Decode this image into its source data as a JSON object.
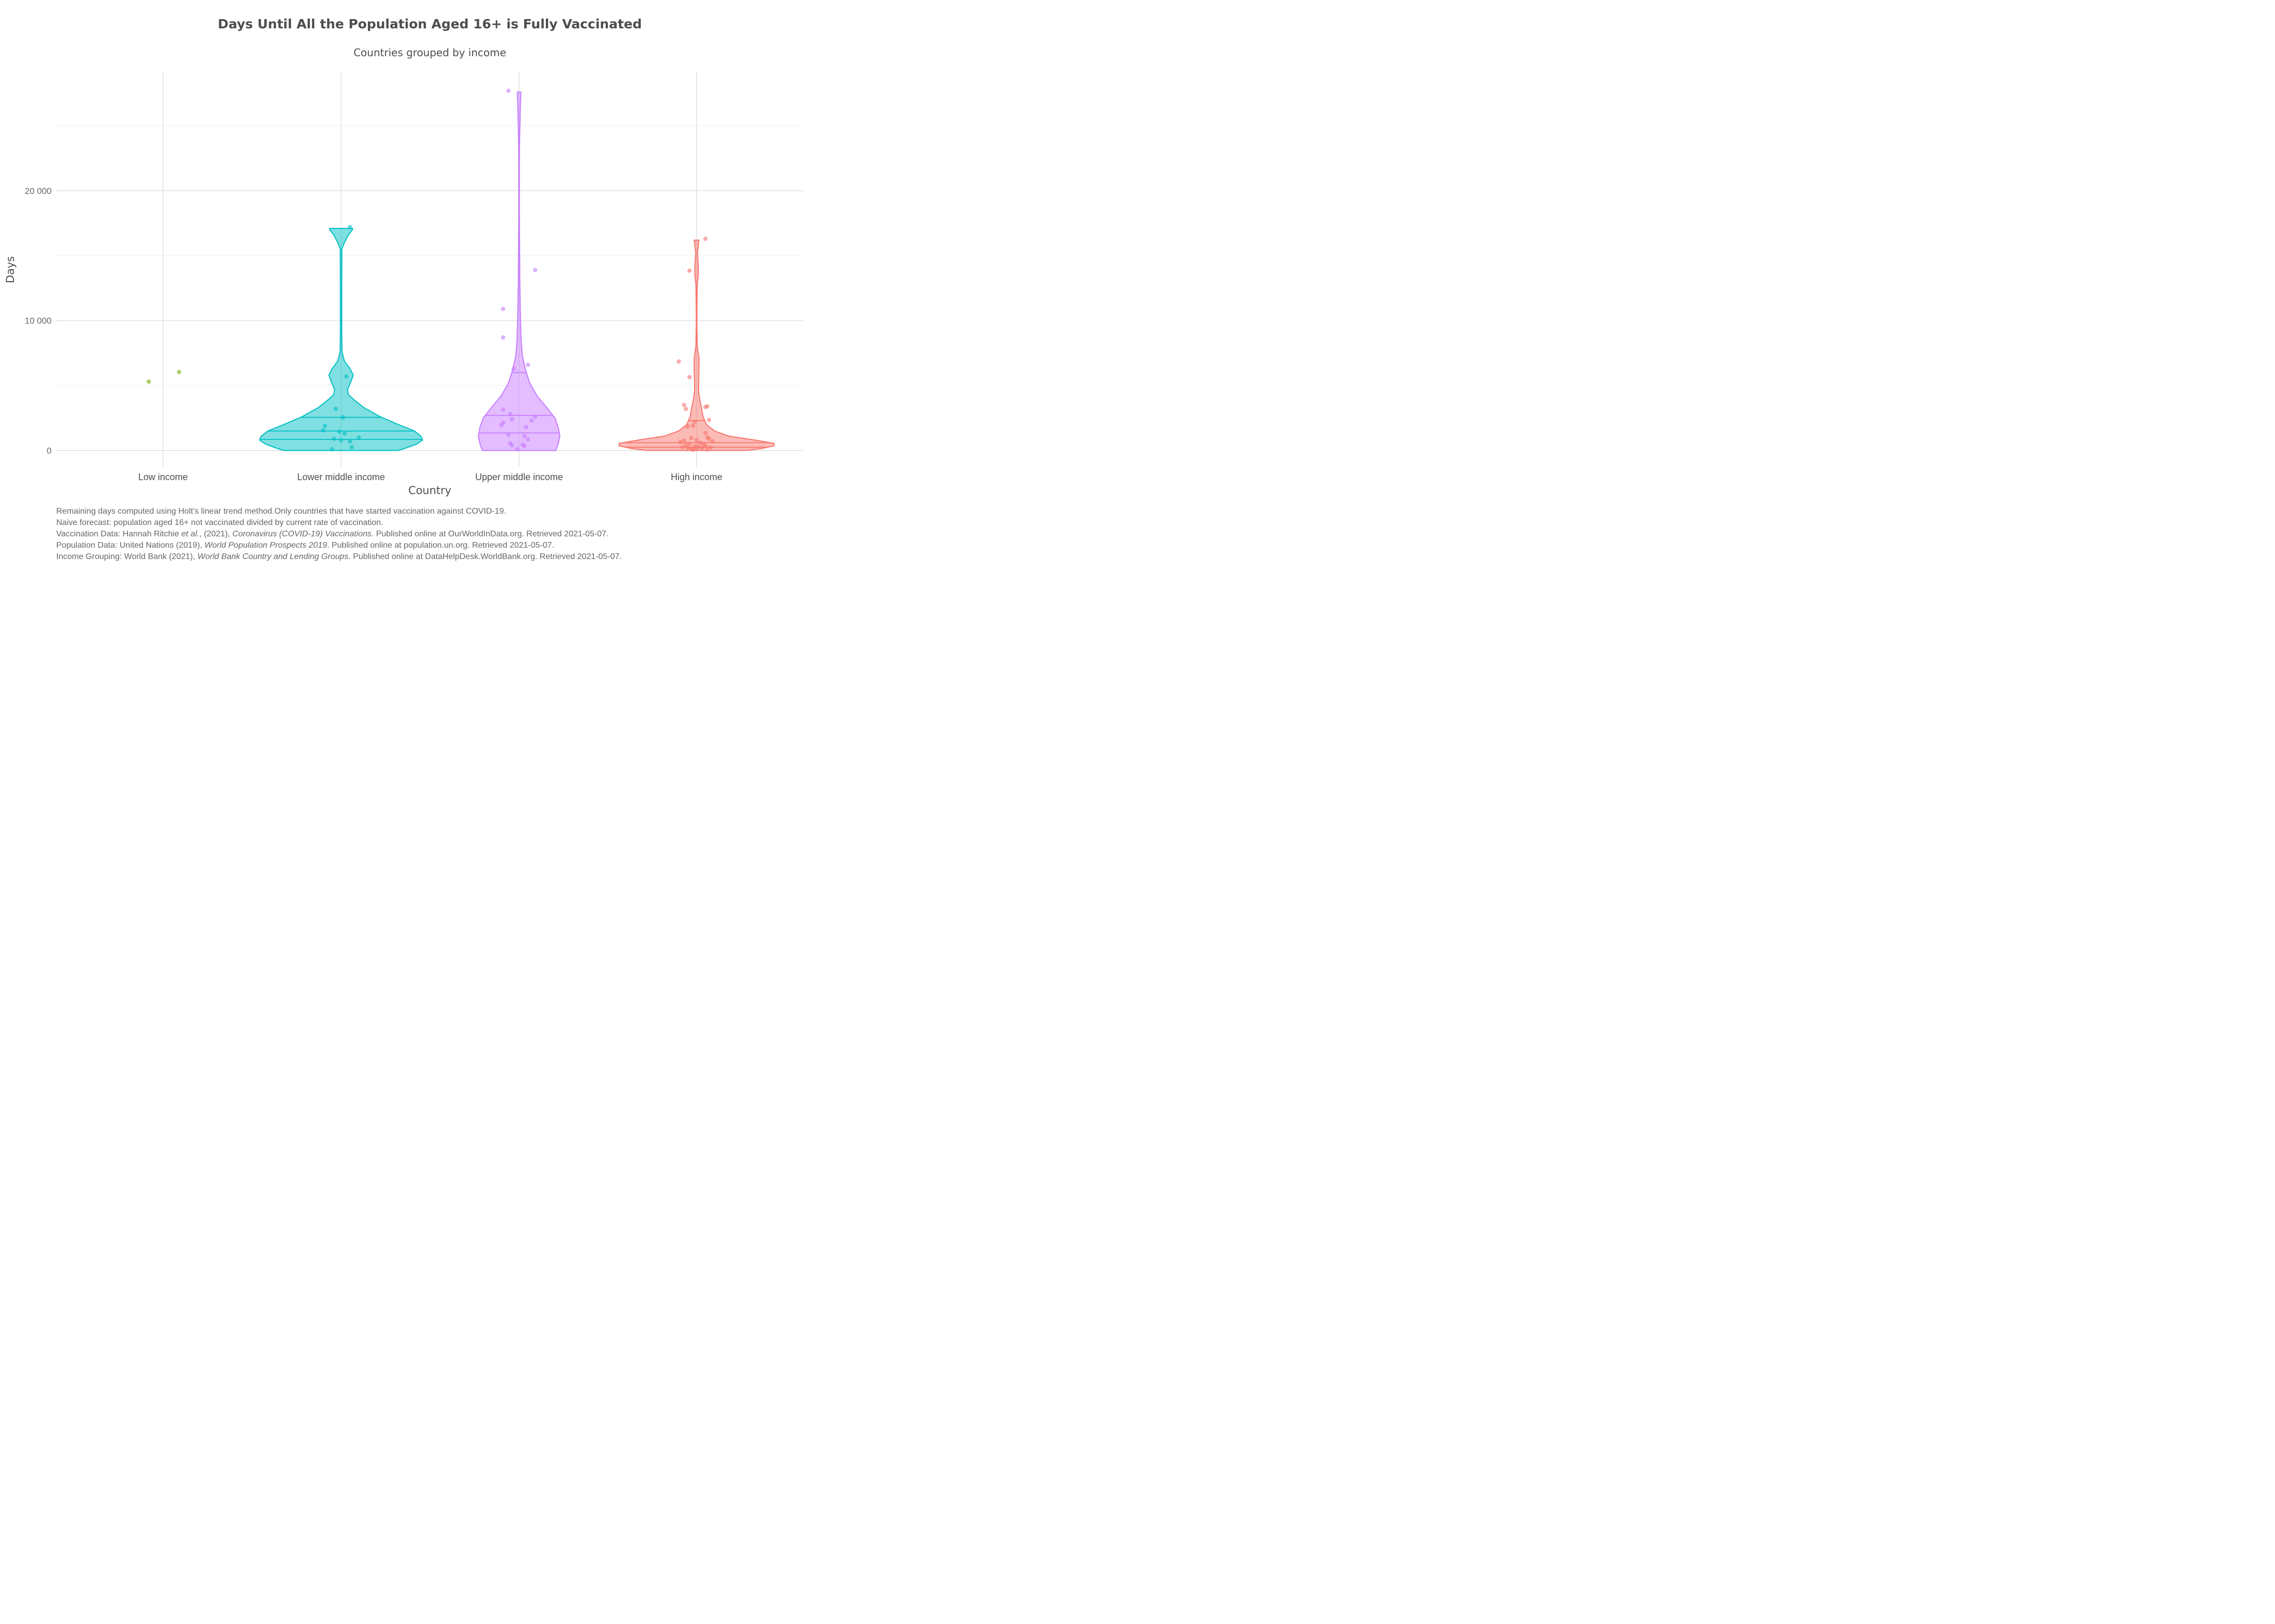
{
  "chart_data": {
    "type": "violin",
    "title": "Days Until All the Population Aged 16+ is Fully Vaccinated",
    "subtitle": "Countries grouped by income",
    "xlabel": "Country",
    "ylabel": "Days",
    "ylim": [
      -1100,
      29000
    ],
    "yticks": [
      {
        "value": 0,
        "label": "0"
      },
      {
        "value": 10000,
        "label": "10 000"
      },
      {
        "value": 20000,
        "label": "20 000"
      }
    ],
    "grid": true,
    "legend": "none",
    "categories": [
      "Low income",
      "Lower middle income",
      "Upper middle income",
      "High income"
    ],
    "series": [
      {
        "category": "Low income",
        "color": "#7CAE00",
        "min": null,
        "max": null,
        "quartiles": [],
        "density": [],
        "points": [
          {
            "x_jitter": -0.08,
            "y": 5300
          },
          {
            "x_jitter": 0.09,
            "y": 6050
          }
        ]
      },
      {
        "category": "Lower middle income",
        "color": "#00BFC4",
        "min": 0,
        "max": 17100,
        "quartiles": [
          850,
          1500,
          2550
        ],
        "density": [
          [
            0,
            0.7
          ],
          [
            200,
            0.8
          ],
          [
            500,
            0.93
          ],
          [
            800,
            1.0
          ],
          [
            1100,
            0.98
          ],
          [
            1500,
            0.9
          ],
          [
            2000,
            0.7
          ],
          [
            2600,
            0.48
          ],
          [
            3300,
            0.28
          ],
          [
            3900,
            0.16
          ],
          [
            4300,
            0.09
          ],
          [
            4700,
            0.08
          ],
          [
            5300,
            0.12
          ],
          [
            5800,
            0.15
          ],
          [
            6300,
            0.11
          ],
          [
            6900,
            0.04
          ],
          [
            7600,
            0.012
          ],
          [
            9000,
            0.008
          ],
          [
            12000,
            0.008
          ],
          [
            15500,
            0.01
          ],
          [
            16000,
            0.04
          ],
          [
            16600,
            0.09
          ],
          [
            17000,
            0.14
          ],
          [
            17100,
            0.14
          ]
        ],
        "points": [
          {
            "x_jitter": -0.05,
            "y": 100
          },
          {
            "x_jitter": 0.06,
            "y": 250
          },
          {
            "x_jitter": 0.05,
            "y": 700
          },
          {
            "x_jitter": 0.0,
            "y": 800
          },
          {
            "x_jitter": -0.04,
            "y": 900
          },
          {
            "x_jitter": 0.1,
            "y": 1000
          },
          {
            "x_jitter": 0.02,
            "y": 1300
          },
          {
            "x_jitter": -0.01,
            "y": 1450
          },
          {
            "x_jitter": -0.1,
            "y": 1550
          },
          {
            "x_jitter": -0.09,
            "y": 1900
          },
          {
            "x_jitter": 0.01,
            "y": 2550
          },
          {
            "x_jitter": -0.03,
            "y": 3200
          },
          {
            "x_jitter": 0.03,
            "y": 5700
          },
          {
            "x_jitter": 0.05,
            "y": 17200
          }
        ]
      },
      {
        "category": "Upper middle income",
        "color": "#C77CFF",
        "min": 0,
        "max": 27600,
        "quartiles": [
          1350,
          2700,
          6000
        ],
        "density": [
          [
            0,
            0.45
          ],
          [
            500,
            0.48
          ],
          [
            1100,
            0.5
          ],
          [
            1800,
            0.48
          ],
          [
            2500,
            0.44
          ],
          [
            3300,
            0.34
          ],
          [
            4200,
            0.22
          ],
          [
            5200,
            0.13
          ],
          [
            6200,
            0.08
          ],
          [
            7300,
            0.04
          ],
          [
            8500,
            0.025
          ],
          [
            10000,
            0.018
          ],
          [
            11500,
            0.013
          ],
          [
            13000,
            0.009
          ],
          [
            14500,
            0.008
          ],
          [
            16000,
            0.006
          ],
          [
            18000,
            0.004
          ],
          [
            20000,
            0.004
          ],
          [
            22000,
            0.004
          ],
          [
            23500,
            0.005
          ],
          [
            24500,
            0.008
          ],
          [
            25500,
            0.012
          ],
          [
            26500,
            0.016
          ],
          [
            27600,
            0.022
          ]
        ],
        "points": [
          {
            "x_jitter": -0.01,
            "y": 100
          },
          {
            "x_jitter": 0.03,
            "y": 350
          },
          {
            "x_jitter": -0.04,
            "y": 400
          },
          {
            "x_jitter": 0.02,
            "y": 450
          },
          {
            "x_jitter": -0.05,
            "y": 550
          },
          {
            "x_jitter": 0.05,
            "y": 850
          },
          {
            "x_jitter": 0.03,
            "y": 1100
          },
          {
            "x_jitter": -0.06,
            "y": 1200
          },
          {
            "x_jitter": 0.04,
            "y": 1800
          },
          {
            "x_jitter": -0.1,
            "y": 1950
          },
          {
            "x_jitter": -0.09,
            "y": 2150
          },
          {
            "x_jitter": -0.04,
            "y": 2400
          },
          {
            "x_jitter": 0.07,
            "y": 2300
          },
          {
            "x_jitter": 0.09,
            "y": 2600
          },
          {
            "x_jitter": -0.05,
            "y": 2800
          },
          {
            "x_jitter": -0.09,
            "y": 3150
          },
          {
            "x_jitter": -0.03,
            "y": 6300
          },
          {
            "x_jitter": 0.05,
            "y": 6600
          },
          {
            "x_jitter": -0.09,
            "y": 8700
          },
          {
            "x_jitter": -0.09,
            "y": 10900
          },
          {
            "x_jitter": 0.09,
            "y": 13900
          },
          {
            "x_jitter": -0.06,
            "y": 27700
          }
        ]
      },
      {
        "category": "High income",
        "color": "#F8766D",
        "min": 0,
        "max": 16200,
        "quartiles": [
          250,
          600,
          2300
        ],
        "density": [
          [
            0,
            0.6
          ],
          [
            150,
            0.8
          ],
          [
            350,
            0.95
          ],
          [
            550,
            0.95
          ],
          [
            800,
            0.72
          ],
          [
            1100,
            0.4
          ],
          [
            1500,
            0.22
          ],
          [
            2000,
            0.12
          ],
          [
            2600,
            0.08
          ],
          [
            3300,
            0.06
          ],
          [
            3900,
            0.04
          ],
          [
            4500,
            0.025
          ],
          [
            5300,
            0.025
          ],
          [
            6200,
            0.03
          ],
          [
            7100,
            0.03
          ],
          [
            8000,
            0.009
          ],
          [
            9500,
            0.004
          ],
          [
            11500,
            0.005
          ],
          [
            12800,
            0.008
          ],
          [
            13600,
            0.022
          ],
          [
            14300,
            0.02
          ],
          [
            15200,
            0.01
          ],
          [
            16200,
            0.03
          ]
        ],
        "points": [
          {
            "x_jitter": -0.02,
            "y": 50
          },
          {
            "x_jitter": 0.06,
            "y": 80
          },
          {
            "x_jitter": -0.03,
            "y": 120
          },
          {
            "x_jitter": 0.0,
            "y": 150
          },
          {
            "x_jitter": 0.03,
            "y": 180
          },
          {
            "x_jitter": -0.05,
            "y": 200
          },
          {
            "x_jitter": 0.08,
            "y": 220
          },
          {
            "x_jitter": -0.08,
            "y": 260
          },
          {
            "x_jitter": 0.01,
            "y": 300
          },
          {
            "x_jitter": -0.01,
            "y": 330
          },
          {
            "x_jitter": 0.05,
            "y": 350
          },
          {
            "x_jitter": -0.06,
            "y": 400
          },
          {
            "x_jitter": 0.04,
            "y": 450
          },
          {
            "x_jitter": -0.04,
            "y": 500
          },
          {
            "x_jitter": 0.02,
            "y": 600
          },
          {
            "x_jitter": -0.09,
            "y": 650
          },
          {
            "x_jitter": 0.09,
            "y": 700
          },
          {
            "x_jitter": -0.07,
            "y": 750
          },
          {
            "x_jitter": 0.0,
            "y": 800
          },
          {
            "x_jitter": 0.07,
            "y": 900
          },
          {
            "x_jitter": -0.03,
            "y": 950
          },
          {
            "x_jitter": 0.06,
            "y": 1000
          },
          {
            "x_jitter": 0.05,
            "y": 1350
          },
          {
            "x_jitter": -0.05,
            "y": 1850
          },
          {
            "x_jitter": -0.02,
            "y": 1900
          },
          {
            "x_jitter": -0.01,
            "y": 2200
          },
          {
            "x_jitter": 0.07,
            "y": 2350
          },
          {
            "x_jitter": -0.06,
            "y": 3200
          },
          {
            "x_jitter": 0.06,
            "y": 3400
          },
          {
            "x_jitter": -0.07,
            "y": 3500
          },
          {
            "x_jitter": 0.05,
            "y": 3350
          },
          {
            "x_jitter": -0.04,
            "y": 5650
          },
          {
            "x_jitter": -0.1,
            "y": 6850
          },
          {
            "x_jitter": -0.04,
            "y": 13850
          },
          {
            "x_jitter": 0.05,
            "y": 16300
          }
        ]
      }
    ]
  },
  "caption": {
    "line1": "Remaining days computed using Holt's linear trend method.Only countries that have started vaccination against COVID-19.",
    "line2": "Naive forecast: population aged 16+ not vaccinated divided by current rate of vaccination.",
    "line3": {
      "a": "Vaccination Data: Hannah Ritchie ",
      "b": "et al.",
      "c": ", (2021), ",
      "d": "Coronavirus (COVID-19) Vaccinations",
      "e": ". Published online at OurWorldInData.org. Retrieved 2021-05-07."
    },
    "line4": {
      "a": "Population Data: United Nations (2019), ",
      "b": "World Population Prospects 2019",
      "c": ". Published online at population.un.org. Retrieved 2021-05-07."
    },
    "line5": {
      "a": "Income Grouping: World Bank (2021), ",
      "b": "World Bank Country and Lending Groups",
      "c": ". Published online at DataHelpDesk.WorldBank.org. Retrieved 2021-05-07."
    }
  }
}
